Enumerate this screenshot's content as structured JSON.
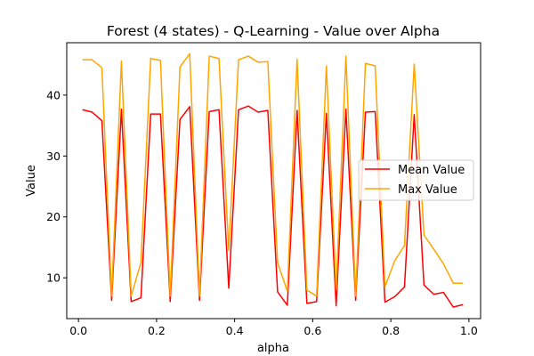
{
  "chart_data": {
    "type": "line",
    "title": "Forest (4 states) - Q-Learning - Value over Alpha",
    "xlabel": "alpha",
    "ylabel": "Value",
    "xlim": [
      -0.03,
      1.03
    ],
    "ylim": [
      3.3,
      48.6
    ],
    "xticks": [
      0.0,
      0.2,
      0.4,
      0.6,
      0.8,
      1.0
    ],
    "xtick_labels": [
      "0.0",
      "0.2",
      "0.4",
      "0.6",
      "0.8",
      "1.0"
    ],
    "yticks": [
      10,
      20,
      30,
      40
    ],
    "ytick_labels": [
      "10",
      "20",
      "30",
      "40"
    ],
    "grid": false,
    "legend_position": "center-right",
    "x": [
      0.01,
      0.035,
      0.06,
      0.085,
      0.11,
      0.135,
      0.16,
      0.185,
      0.21,
      0.235,
      0.26,
      0.285,
      0.31,
      0.335,
      0.36,
      0.385,
      0.41,
      0.435,
      0.46,
      0.485,
      0.51,
      0.535,
      0.56,
      0.585,
      0.61,
      0.635,
      0.66,
      0.685,
      0.71,
      0.735,
      0.76,
      0.785,
      0.81,
      0.835,
      0.86,
      0.885,
      0.91,
      0.935,
      0.96,
      0.985
    ],
    "series": [
      {
        "name": "Mean Value",
        "color": "#ff0000",
        "values": [
          37.6,
          37.2,
          35.8,
          6.3,
          37.7,
          6.1,
          6.7,
          36.9,
          36.9,
          6.1,
          36.0,
          38.1,
          6.3,
          37.3,
          37.6,
          8.3,
          37.6,
          38.2,
          37.2,
          37.5,
          7.7,
          5.5,
          37.5,
          5.8,
          6.1,
          37.0,
          5.4,
          37.7,
          6.3,
          37.2,
          37.3,
          6.0,
          6.9,
          8.5,
          36.8,
          8.8,
          7.3,
          7.6,
          5.2,
          5.6
        ]
      },
      {
        "name": "Max Value",
        "color": "#ffa500",
        "values": [
          45.8,
          45.8,
          44.5,
          7.0,
          45.6,
          7.0,
          12.5,
          46.0,
          45.7,
          7.0,
          44.6,
          46.8,
          7.0,
          46.4,
          46.0,
          14.5,
          45.8,
          46.4,
          45.4,
          45.5,
          12.5,
          7.8,
          45.9,
          8.0,
          7.0,
          44.8,
          8.0,
          46.4,
          7.0,
          45.2,
          44.8,
          8.5,
          12.8,
          15.3,
          45.1,
          17.0,
          14.7,
          12.3,
          9.1,
          9.1
        ]
      }
    ]
  }
}
